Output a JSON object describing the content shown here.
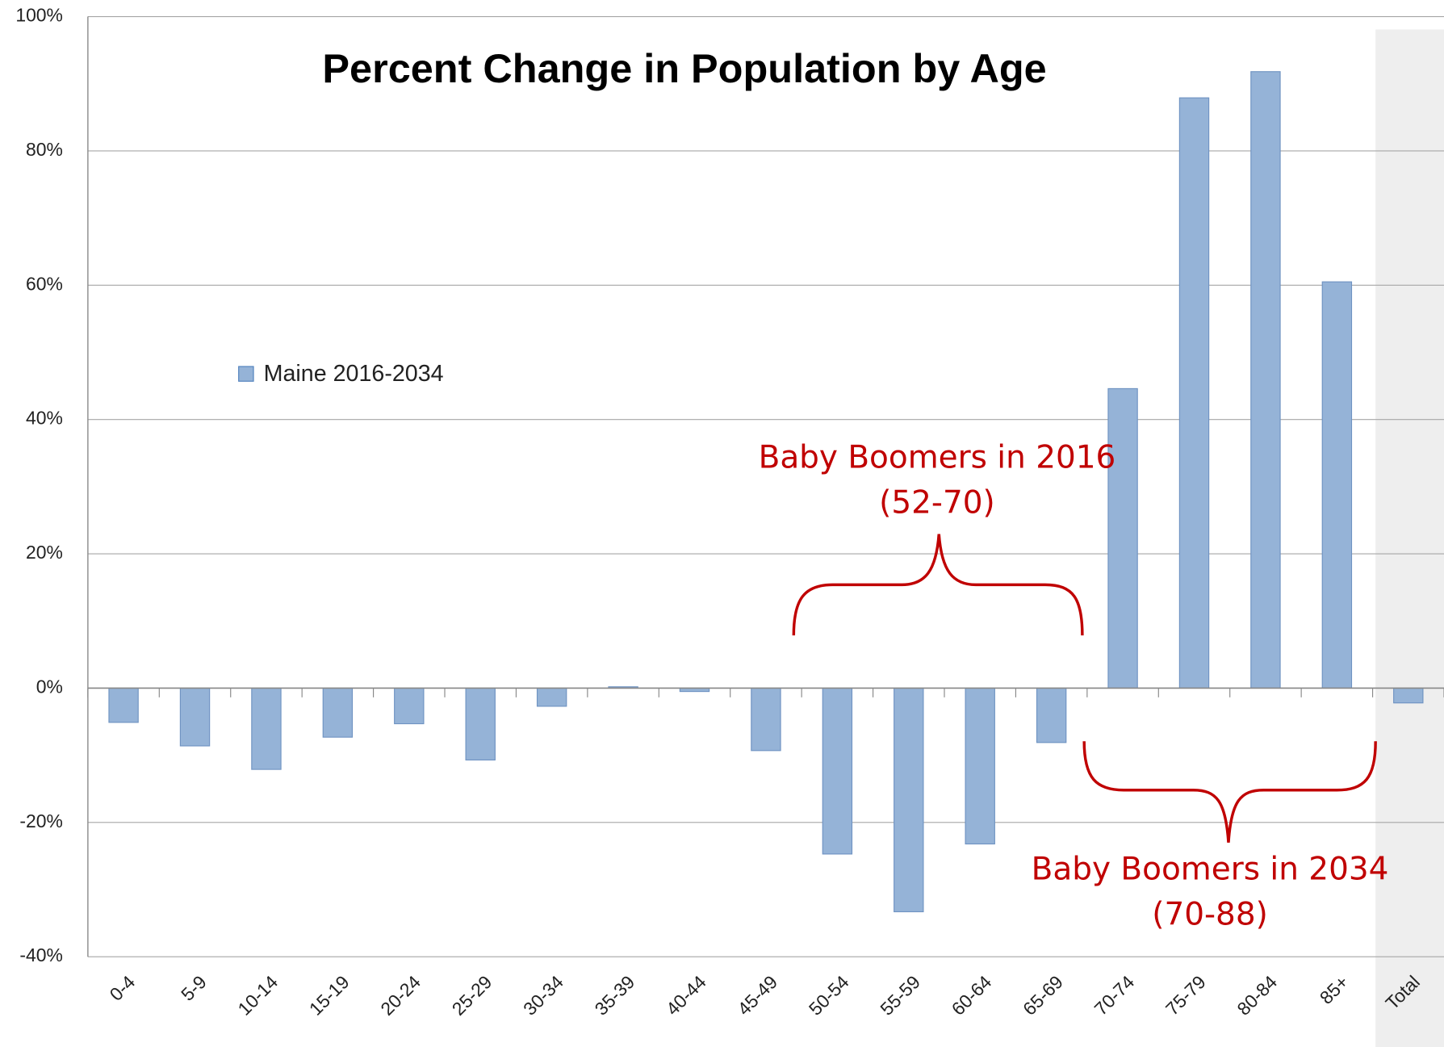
{
  "chart_data": {
    "type": "bar",
    "title": "Percent Change in Population by Age",
    "categories": [
      "0-4",
      "5-9",
      "10-14",
      "15-19",
      "20-24",
      "25-29",
      "30-34",
      "35-39",
      "40-44",
      "45-49",
      "50-54",
      "55-59",
      "60-64",
      "65-69",
      "70-74",
      "75-79",
      "80-84",
      "85+",
      "Total"
    ],
    "series": [
      {
        "name": "Maine 2016-2034",
        "color": "#95b3d7",
        "values": [
          -5.1,
          -8.6,
          -12.1,
          -7.3,
          -5.3,
          -10.7,
          -2.7,
          0.2,
          -0.5,
          -9.3,
          -24.7,
          -33.3,
          -23.2,
          -8.1,
          44.6,
          87.9,
          91.8,
          60.5,
          -2.2
        ]
      }
    ],
    "ylim": [
      -40,
      100
    ],
    "yticks": [
      {
        "value": -40,
        "label": "-40%"
      },
      {
        "value": -20,
        "label": "-20%"
      },
      {
        "value": 0,
        "label": "0%"
      },
      {
        "value": 20,
        "label": "20%"
      },
      {
        "value": 40,
        "label": "40%"
      },
      {
        "value": 60,
        "label": "60%"
      },
      {
        "value": 80,
        "label": "80%"
      },
      {
        "value": 100,
        "label": "100%"
      }
    ],
    "grid": true,
    "annotations": [
      {
        "lines": [
          "Baby Boomers in 2016",
          "(52-70)"
        ]
      },
      {
        "lines": [
          "Baby Boomers in 2034",
          "(70-88)"
        ]
      }
    ]
  }
}
